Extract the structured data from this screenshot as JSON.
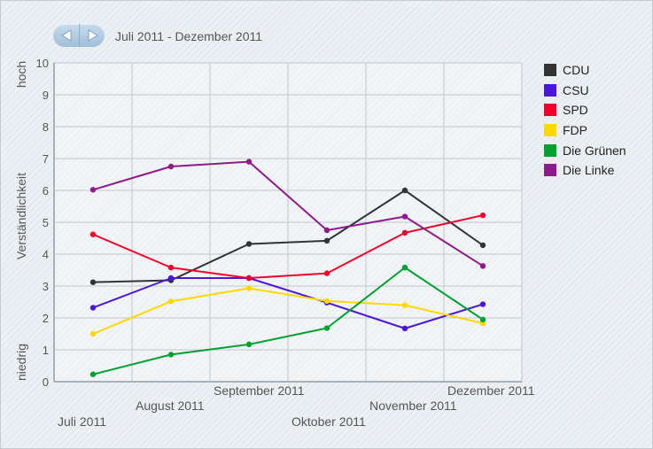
{
  "header": {
    "period_label": "Juli 2011 - Dezember 2011",
    "prev_icon": "triangle-left-icon",
    "next_icon": "triangle-right-icon"
  },
  "chart_data": {
    "type": "line",
    "title": "",
    "xlabel": "",
    "ylabel": "Verständlichkeit",
    "y_low_label": "niedrig",
    "y_high_label": "hoch",
    "ylim": [
      0,
      10
    ],
    "yticks": [
      0,
      1,
      2,
      3,
      4,
      5,
      6,
      7,
      8,
      9,
      10
    ],
    "grid": true,
    "legend_position": "right",
    "categories": [
      "Juli 2011",
      "August 2011",
      "September 2011",
      "Oktober 2011",
      "November 2011",
      "Dezember 2011"
    ],
    "series": [
      {
        "name": "CDU",
        "color": "#333333",
        "values": [
          3.12,
          3.18,
          4.32,
          4.42,
          6.0,
          4.28
        ]
      },
      {
        "name": "CSU",
        "color": "#4a17d6",
        "values": [
          2.32,
          3.25,
          3.25,
          2.48,
          1.67,
          2.43
        ]
      },
      {
        "name": "SPD",
        "color": "#f0002a",
        "values": [
          4.62,
          3.58,
          3.25,
          3.4,
          4.67,
          5.22
        ]
      },
      {
        "name": "FDP",
        "color": "#ffd800",
        "values": [
          1.5,
          2.52,
          2.93,
          2.53,
          2.4,
          1.83
        ]
      },
      {
        "name": "Die Grünen",
        "color": "#00a030",
        "values": [
          0.23,
          0.85,
          1.17,
          1.68,
          3.58,
          1.95
        ]
      },
      {
        "name": "Die Linke",
        "color": "#8e1a8c",
        "values": [
          6.02,
          6.75,
          6.9,
          4.75,
          5.18,
          3.63
        ]
      }
    ]
  }
}
